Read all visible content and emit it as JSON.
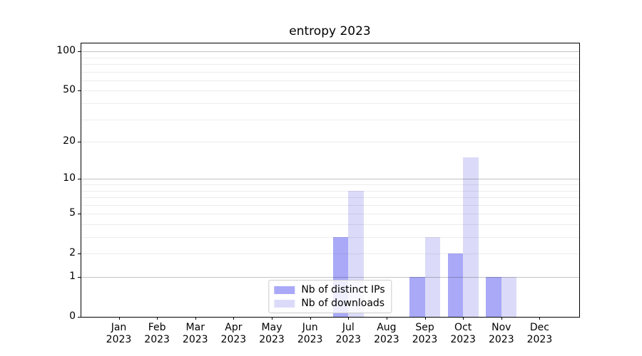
{
  "chart_data": {
    "type": "bar",
    "title": "entropy 2023",
    "categories": [
      "Jan",
      "Feb",
      "Mar",
      "Apr",
      "May",
      "Jun",
      "Jul",
      "Aug",
      "Sep",
      "Oct",
      "Nov",
      "Dec"
    ],
    "year": "2023",
    "series": [
      {
        "name": "Nb of distinct IPs",
        "color": "#a9a9f8",
        "values": [
          0,
          0,
          0,
          0,
          0,
          0,
          3,
          0,
          1,
          2,
          1,
          0
        ]
      },
      {
        "name": "Nb of downloads",
        "color": "#dbdbf9",
        "values": [
          0,
          0,
          0,
          0,
          0,
          0,
          8,
          0,
          3,
          15,
          1,
          0
        ]
      }
    ],
    "xlabel": "",
    "ylabel": "",
    "y_tick_labels": [
      0,
      1,
      2,
      5,
      10,
      20,
      50,
      100
    ],
    "major_gridlines": [
      1,
      10,
      100
    ],
    "minor_gridlines": [
      2,
      3,
      4,
      5,
      6,
      7,
      8,
      9,
      20,
      30,
      40,
      50,
      60,
      70,
      80,
      90
    ],
    "scale": "log1p",
    "ylim": [
      0,
      115
    ],
    "grid": true,
    "legend_position": "lower center"
  }
}
